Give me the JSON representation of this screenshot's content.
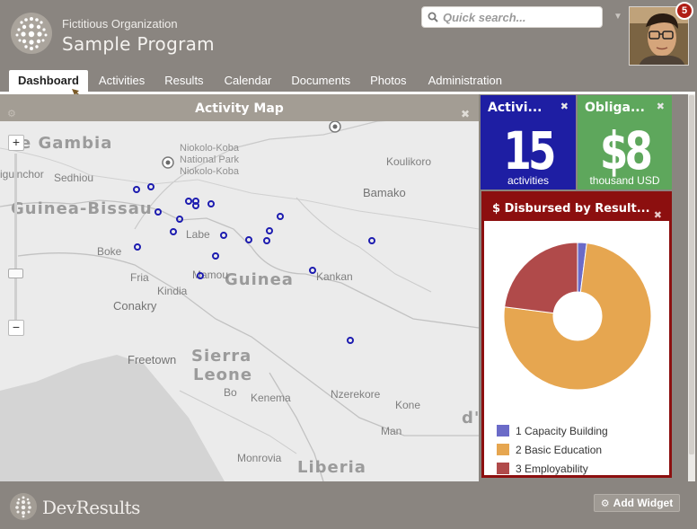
{
  "header": {
    "org_name": "Fictitious Organization",
    "program_name": "Sample Program",
    "search_placeholder": "Quick search...",
    "notification_count": "5"
  },
  "nav": {
    "items": [
      "Dashboard",
      "Activities",
      "Results",
      "Calendar",
      "Documents",
      "Photos",
      "Administration"
    ],
    "active": "Dashboard"
  },
  "map_panel": {
    "title": "Activity Map",
    "zoom_in": "+",
    "zoom_out": "−",
    "labels": {
      "gambia": "e Gambia",
      "guinea_bissau": "Guinea-Bissau",
      "guinea": "Guinea",
      "sierra": "Sierra",
      "leone": "Leone",
      "liberia": "Liberia",
      "mali_edge": "d'I",
      "park1": "Niokolo-Koba",
      "park2": "National Park",
      "park3": "Niokolo-Koba",
      "bamako": "Bamako",
      "koulikoro": "Koulikoro",
      "conakry": "Conakry",
      "freetown": "Freetown",
      "ziguinchor": "iguinchor",
      "sedhiou": "Sedhiou",
      "boke": "Boke",
      "fria": "Fria",
      "kindia": "Kindia",
      "labe": "Labe",
      "mamou": "Mamou",
      "kankan": "Kankan",
      "bo": "Bo",
      "kenema": "Kenema",
      "nzerekore": "Nzerekore",
      "kone": "Kone",
      "man": "Man",
      "monrovia": "Monrovia"
    }
  },
  "kpis": [
    {
      "title": "Activi...",
      "value": "15",
      "unit": "activities",
      "color": "#1e1ea3"
    },
    {
      "title": "Obliga...",
      "value": "$8",
      "unit": "thousand USD",
      "color": "#5ea75c"
    }
  ],
  "pie_panel": {
    "title": "$ Disbursed by Result...",
    "close": "✖"
  },
  "chart_data": {
    "type": "pie",
    "title": "$ Disbursed by Result...",
    "donut": true,
    "legend_position": "bottom",
    "series": [
      {
        "name": "1 Capacity Building",
        "value": 2,
        "color": "#6b6bc8"
      },
      {
        "name": "2 Basic Education",
        "value": 75,
        "color": "#e6a650"
      },
      {
        "name": "3 Employability",
        "value": 23,
        "color": "#b04a4a"
      }
    ]
  },
  "footer": {
    "brand": "DevResults",
    "add_widget": "Add Widget"
  }
}
